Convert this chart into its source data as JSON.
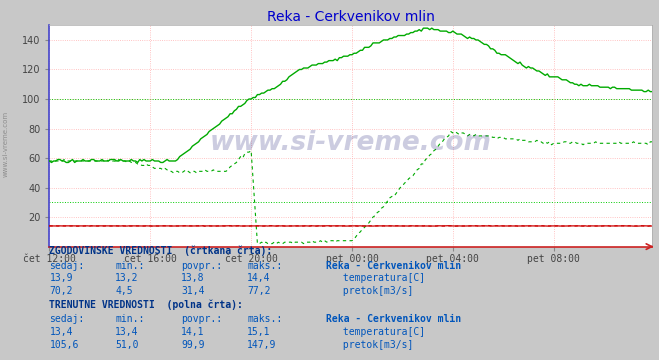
{
  "title": "Reka - Cerkvenikov mlin",
  "title_color": "#0000cc",
  "fig_bg_color": "#c8c8c8",
  "plot_bg_color": "#ffffff",
  "grid_pink": "#ffb0b0",
  "grid_green": "#00cc00",
  "x_labels": [
    "čet 12:00",
    "čet 16:00",
    "čet 20:00",
    "pet 00:00",
    "pet 04:00",
    "pet 08:00"
  ],
  "x_ticks_pos": [
    0,
    48,
    96,
    144,
    192,
    240
  ],
  "ylim": [
    0,
    150
  ],
  "yticks": [
    20,
    40,
    60,
    80,
    100,
    120,
    140
  ],
  "temp_color": "#cc0000",
  "flow_color": "#00aa00",
  "watermark": "www.si-vreme.com",
  "side_label": "www.si-vreme.com",
  "table_blue": "#0055bb",
  "table_header_blue": "#003388",
  "hist_label": "ZGODOVINSKE VREDNOSTI  (črtkana črta):",
  "curr_label": "TRENUTNE VREDNOSTI  (polna črta):",
  "col_headers": [
    "sedaj:",
    "min.:",
    "povpr.:",
    "maks.:"
  ],
  "station_name": "Reka - Cerkvenikov mlin",
  "hist_temp_vals": [
    "13,9",
    "13,2",
    "13,8",
    "14,4"
  ],
  "hist_flow_vals": [
    "70,2",
    "4,5",
    "31,4",
    "77,2"
  ],
  "curr_temp_vals": [
    "13,4",
    "13,4",
    "14,1",
    "15,1"
  ],
  "curr_flow_vals": [
    "105,6",
    "51,0",
    "99,9",
    "147,9"
  ],
  "total_points": 288
}
